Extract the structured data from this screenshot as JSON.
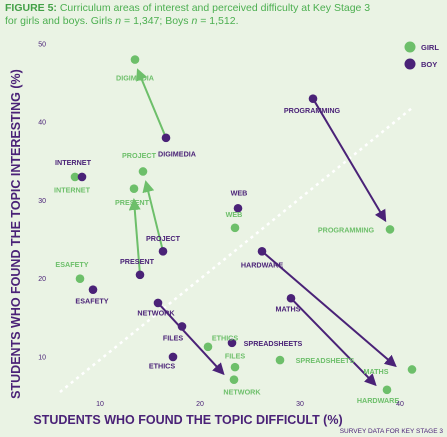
{
  "caption": {
    "figure_label": "FIGURE 5:",
    "line1_text": " Curriculum areas of interest and perceived difficulty at Key Stage 3",
    "line2_prefix": "for girls and boys. Girls ",
    "n1": "n",
    "line2_mid": " = 1,347; Boys ",
    "n2": "n",
    "line2_suffix": " = 1,512."
  },
  "source_note": "SURVEY DATA FOR KEY STAGE 3",
  "colors": {
    "girl": "#6dbf6a",
    "boy": "#4a2277",
    "caption": "#4caf50",
    "axis_text": "#4a2277",
    "background": "#eaf3e4",
    "diagonal": "#ffffff"
  },
  "chart_data": {
    "type": "scatter",
    "title": "",
    "xlabel": "STUDENTS WHO FOUND THE TOPIC DIFFICULT (%)",
    "ylabel": "STUDENTS WHO FOUND THE TOPIC INTERESTING (%)",
    "xlim": [
      5,
      42.5
    ],
    "ylim": [
      4.5,
      50.5
    ],
    "xticks": [
      10,
      20,
      30,
      40
    ],
    "yticks": [
      10,
      20,
      30,
      40,
      50
    ],
    "grid": false,
    "reference_line": "diagonal",
    "legend": {
      "position": "top-right",
      "entries": [
        {
          "key": "girl",
          "label": "GIRL"
        },
        {
          "key": "boy",
          "label": "BOY"
        }
      ]
    },
    "series": [
      {
        "name": "GIRL",
        "color_key": "girl",
        "points": [
          {
            "topic": "DIGIMEDIA",
            "x": 13.5,
            "y": 48
          },
          {
            "topic": "INTERNET",
            "x": 7.5,
            "y": 33
          },
          {
            "topic": "PROJECT",
            "x": 14.3,
            "y": 33.7
          },
          {
            "topic": "PRESENT",
            "x": 13.4,
            "y": 31.5
          },
          {
            "topic": "WEB",
            "x": 23.5,
            "y": 26.5
          },
          {
            "topic": "PROGRAMMING",
            "x": 39,
            "y": 26.3
          },
          {
            "topic": "ESAFETY",
            "x": 8,
            "y": 20
          },
          {
            "topic": "ETHICS",
            "x": 20.8,
            "y": 11.3
          },
          {
            "topic": "SPREADSHEETS",
            "x": 28,
            "y": 9.6
          },
          {
            "topic": "FILES",
            "x": 23.5,
            "y": 8.7
          },
          {
            "topic": "NETWORK",
            "x": 23.4,
            "y": 7.1
          },
          {
            "topic": "MATHS",
            "x": 41.2,
            "y": 8.4
          },
          {
            "topic": "HARDWARE",
            "x": 38.7,
            "y": 5.8
          }
        ]
      },
      {
        "name": "BOY",
        "color_key": "boy",
        "points": [
          {
            "topic": "DIGIMEDIA",
            "x": 16.6,
            "y": 38
          },
          {
            "topic": "INTERNET",
            "x": 8.2,
            "y": 33
          },
          {
            "topic": "PROJECT",
            "x": 16.3,
            "y": 23.5
          },
          {
            "topic": "PRESENT",
            "x": 14,
            "y": 20.5
          },
          {
            "topic": "WEB",
            "x": 23.8,
            "y": 29
          },
          {
            "topic": "PROGRAMMING",
            "x": 31.3,
            "y": 43
          },
          {
            "topic": "ESAFETY",
            "x": 9.3,
            "y": 18.6
          },
          {
            "topic": "HARDWARE",
            "x": 26.2,
            "y": 23.5
          },
          {
            "topic": "NETWORK",
            "x": 15.8,
            "y": 16.9
          },
          {
            "topic": "FILES",
            "x": 18.2,
            "y": 13.9
          },
          {
            "topic": "SPREADSHEETS",
            "x": 23.2,
            "y": 11.8
          },
          {
            "topic": "MATHS",
            "x": 29.1,
            "y": 17.5
          },
          {
            "topic": "ETHICS",
            "x": 17.3,
            "y": 10
          }
        ]
      }
    ],
    "arrows": [
      {
        "color_key": "girl",
        "from": [
          16.6,
          38
        ],
        "to": [
          13.8,
          46.6
        ]
      },
      {
        "color_key": "girl",
        "from": [
          16.3,
          23.5
        ],
        "to": [
          14.6,
          32.3
        ]
      },
      {
        "color_key": "girl",
        "from": [
          14,
          20.5
        ],
        "to": [
          13.4,
          30
        ]
      },
      {
        "color_key": "boy",
        "from": [
          31.3,
          43
        ],
        "to": [
          38.5,
          27.5
        ]
      },
      {
        "color_key": "boy",
        "from": [
          26.2,
          23.5
        ],
        "to": [
          39.5,
          8.9
        ]
      },
      {
        "color_key": "boy",
        "from": [
          29.1,
          17.5
        ],
        "to": [
          37.5,
          6.5
        ]
      },
      {
        "color_key": "boy",
        "from": [
          15.8,
          16.9
        ],
        "to": [
          22.3,
          7.9
        ]
      }
    ],
    "labels": [
      {
        "text": "DIGIMEDIA",
        "color_key": "girl",
        "x": 13.5,
        "y": 45.3,
        "anchor": "middle"
      },
      {
        "text": "DIGIMEDIA",
        "color_key": "boy",
        "x": 17.7,
        "y": 35.6,
        "anchor": "middle"
      },
      {
        "text": "INTERNET",
        "color_key": "boy",
        "x": 7.3,
        "y": 34.5,
        "anchor": "middle"
      },
      {
        "text": "INTERNET",
        "color_key": "girl",
        "x": 7.2,
        "y": 31,
        "anchor": "middle"
      },
      {
        "text": "PROJECT",
        "color_key": "girl",
        "x": 13.9,
        "y": 35.4,
        "anchor": "middle"
      },
      {
        "text": "PRESENT",
        "color_key": "girl",
        "x": 13.2,
        "y": 29.4,
        "anchor": "middle"
      },
      {
        "text": "PROJECT",
        "color_key": "boy",
        "x": 16.3,
        "y": 24.8,
        "anchor": "middle"
      },
      {
        "text": "PRESENT",
        "color_key": "boy",
        "x": 13.7,
        "y": 21.9,
        "anchor": "middle"
      },
      {
        "text": "WEB",
        "color_key": "boy",
        "x": 23.9,
        "y": 30.6,
        "anchor": "middle"
      },
      {
        "text": "WEB",
        "color_key": "girl",
        "x": 23.4,
        "y": 27.9,
        "anchor": "middle"
      },
      {
        "text": "PROGRAMMING",
        "color_key": "boy",
        "x": 31.2,
        "y": 41.2,
        "anchor": "middle"
      },
      {
        "text": "PROGRAMMING",
        "color_key": "girl",
        "x": 34.6,
        "y": 25.9,
        "anchor": "middle"
      },
      {
        "text": "ESAFETY",
        "color_key": "girl",
        "x": 7.2,
        "y": 21.5,
        "anchor": "middle"
      },
      {
        "text": "ESAFETY",
        "color_key": "boy",
        "x": 9.2,
        "y": 16.8,
        "anchor": "middle"
      },
      {
        "text": "HARDWARE",
        "color_key": "boy",
        "x": 26.2,
        "y": 21.4,
        "anchor": "middle"
      },
      {
        "text": "MATHS",
        "color_key": "boy",
        "x": 28.8,
        "y": 15.8,
        "anchor": "middle"
      },
      {
        "text": "NETWORK",
        "color_key": "boy",
        "x": 15.6,
        "y": 15.3,
        "anchor": "middle"
      },
      {
        "text": "FILES",
        "color_key": "boy",
        "x": 17.3,
        "y": 12.1,
        "anchor": "middle"
      },
      {
        "text": "ETHICS",
        "color_key": "girl",
        "x": 22.5,
        "y": 12.1,
        "anchor": "middle"
      },
      {
        "text": "SPREADSHEETS",
        "color_key": "boy",
        "x": 27.3,
        "y": 11.4,
        "anchor": "middle"
      },
      {
        "text": "FILES",
        "color_key": "girl",
        "x": 23.5,
        "y": 9.8,
        "anchor": "middle"
      },
      {
        "text": "SPREADSHEETS",
        "color_key": "girl",
        "x": 32.5,
        "y": 9.2,
        "anchor": "middle"
      },
      {
        "text": "ETHICS",
        "color_key": "boy",
        "x": 16.2,
        "y": 8.5,
        "anchor": "middle"
      },
      {
        "text": "MATHS",
        "color_key": "girl",
        "x": 37.6,
        "y": 7.8,
        "anchor": "middle"
      },
      {
        "text": "NETWORK",
        "color_key": "girl",
        "x": 24.2,
        "y": 5.2,
        "anchor": "middle"
      },
      {
        "text": "HARDWARE",
        "color_key": "girl",
        "x": 37.8,
        "y": 4.1,
        "anchor": "middle"
      }
    ]
  }
}
